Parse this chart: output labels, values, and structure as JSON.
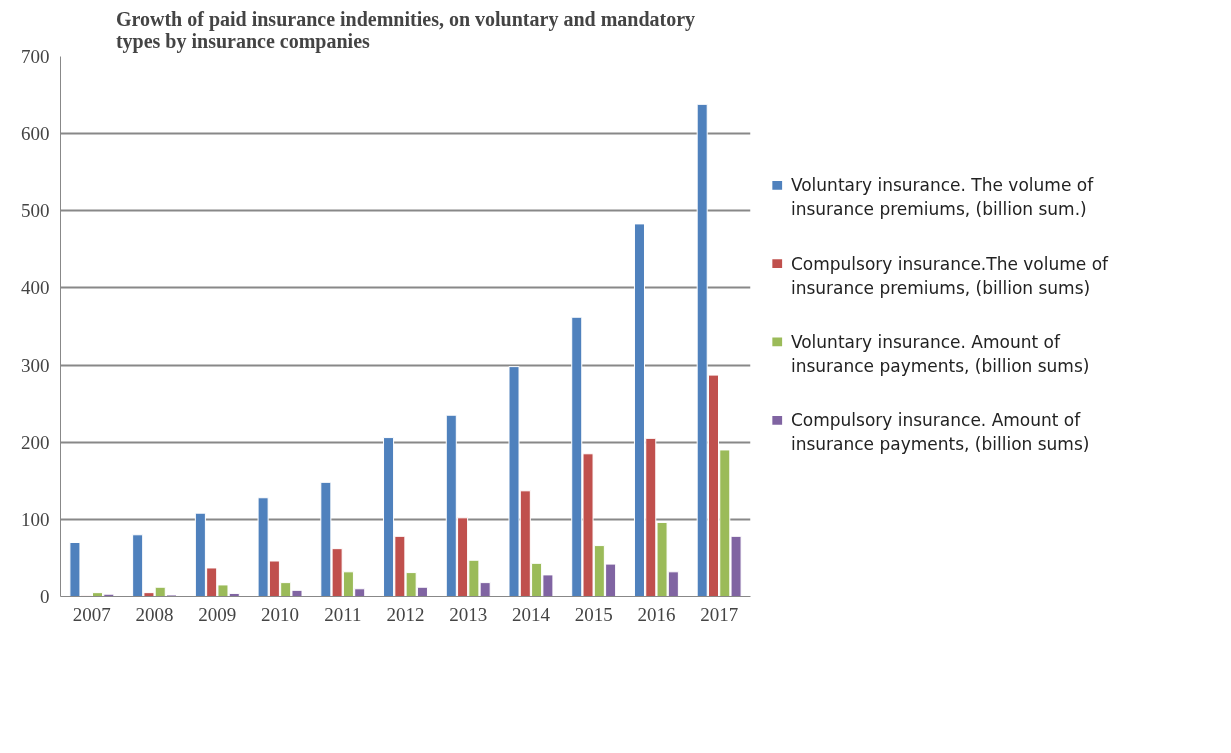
{
  "chart_data": {
    "type": "bar",
    "title": "Growth of paid insurance indemnities, on voluntary and mandatory types by insurance companies",
    "categories": [
      "2007",
      "2008",
      "2009",
      "2010",
      "2011",
      "2012",
      "2013",
      "2014",
      "2015",
      "2016",
      "2017"
    ],
    "series": [
      {
        "name": "Voluntary insurance. The volume of insurance premiums, (billion sum.)",
        "color": "#4f81bd",
        "values": [
          70,
          80,
          108,
          128,
          148,
          206,
          235,
          298,
          362,
          483,
          638
        ]
      },
      {
        "name": "Compulsory insurance.The volume of insurance premiums, (billion sums)",
        "color": "#c0504d",
        "values": [
          1,
          5,
          37,
          46,
          62,
          78,
          102,
          137,
          185,
          205,
          287
        ]
      },
      {
        "name": "Voluntary insurance. Amount of insurance payments, (billion sums)",
        "color": "#9bbb59",
        "values": [
          5,
          12,
          15,
          18,
          32,
          31,
          47,
          43,
          66,
          96,
          190
        ]
      },
      {
        "name": "Compulsory insurance. Amount of insurance payments, (billion sums)",
        "color": "#8064a2",
        "values": [
          3,
          2,
          4,
          8,
          10,
          12,
          18,
          28,
          42,
          32,
          78
        ]
      }
    ],
    "ylim": [
      0,
      700
    ],
    "yticks": [
      0,
      100,
      200,
      300,
      400,
      500,
      600,
      700
    ],
    "grid": "y",
    "legend": "right"
  }
}
